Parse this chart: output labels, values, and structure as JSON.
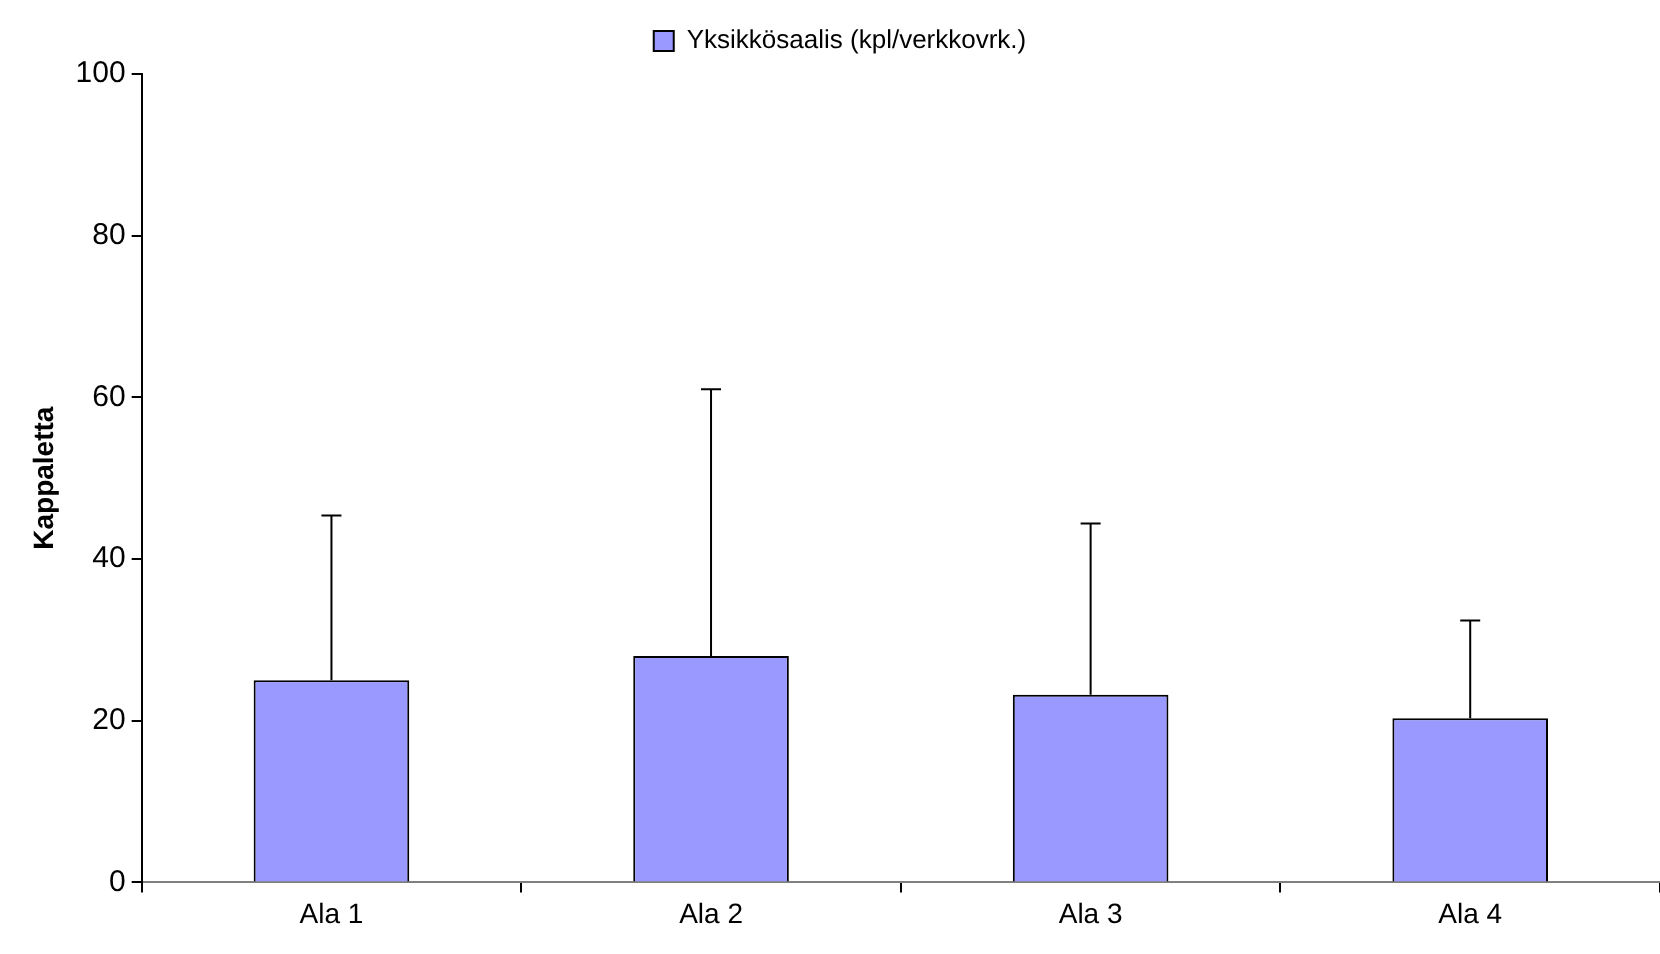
{
  "chart_data": {
    "type": "bar",
    "ylabel": "Kappaletta",
    "categories": [
      "Ala 1",
      "Ala 2",
      "Ala 3",
      "Ala 4"
    ],
    "series": [
      {
        "name": "Yksikkösaalis (kpl/verkkovrk.)",
        "color": "#9999ff",
        "values": [
          25,
          28,
          23.2,
          20.3
        ],
        "errors": [
          [
            25,
            45.4
          ],
          [
            28,
            61
          ],
          [
            23.2,
            44.4
          ],
          [
            20.3,
            32.4
          ]
        ]
      }
    ],
    "ylim": [
      0,
      100
    ],
    "yticks": [
      0,
      20,
      40,
      60,
      80,
      100
    ],
    "grid": false,
    "legend": "top"
  }
}
